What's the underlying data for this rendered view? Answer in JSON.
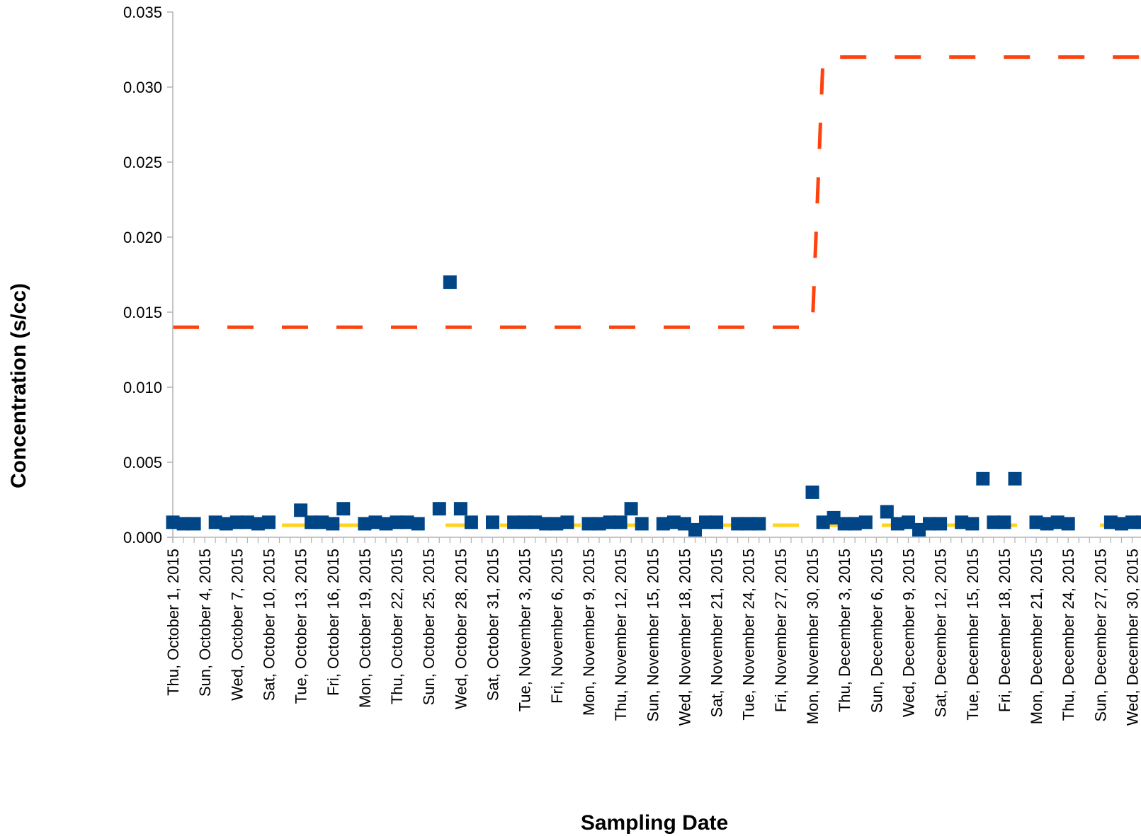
{
  "chart_data": {
    "type": "scatter",
    "xlabel": "Sampling Date",
    "ylabel": "Concentration (s/cc)",
    "ylim": [
      0,
      0.035
    ],
    "xlim": [
      "2015-10-01",
      "2015-12-31"
    ],
    "y_ticks": [
      "0.000",
      "0.005",
      "0.010",
      "0.015",
      "0.020",
      "0.025",
      "0.030",
      "0.035"
    ],
    "x_ticks": [
      {
        "date": "2015-10-01",
        "label": "Thu, October 1, 2015"
      },
      {
        "date": "2015-10-04",
        "label": "Sun, October 4, 2015"
      },
      {
        "date": "2015-10-07",
        "label": "Wed, October 7, 2015"
      },
      {
        "date": "2015-10-10",
        "label": "Sat, October 10, 2015"
      },
      {
        "date": "2015-10-13",
        "label": "Tue, October 13, 2015"
      },
      {
        "date": "2015-10-16",
        "label": "Fri, October 16, 2015"
      },
      {
        "date": "2015-10-19",
        "label": "Mon, October 19, 2015"
      },
      {
        "date": "2015-10-22",
        "label": "Thu, October 22, 2015"
      },
      {
        "date": "2015-10-25",
        "label": "Sun, October 25, 2015"
      },
      {
        "date": "2015-10-28",
        "label": "Wed, October 28, 2015"
      },
      {
        "date": "2015-10-31",
        "label": "Sat, October 31, 2015"
      },
      {
        "date": "2015-11-03",
        "label": "Tue, November 3, 2015"
      },
      {
        "date": "2015-11-06",
        "label": "Fri, November 6, 2015"
      },
      {
        "date": "2015-11-09",
        "label": "Mon, November 9, 2015"
      },
      {
        "date": "2015-11-12",
        "label": "Thu, November 12, 2015"
      },
      {
        "date": "2015-11-15",
        "label": "Sun, November 15, 2015"
      },
      {
        "date": "2015-11-18",
        "label": "Wed, November 18, 2015"
      },
      {
        "date": "2015-11-21",
        "label": "Sat, November 21, 2015"
      },
      {
        "date": "2015-11-24",
        "label": "Tue, November 24, 2015"
      },
      {
        "date": "2015-11-27",
        "label": "Fri, November 27, 2015"
      },
      {
        "date": "2015-11-30",
        "label": "Mon, November 30, 2015"
      },
      {
        "date": "2015-12-03",
        "label": "Thu, December 3, 2015"
      },
      {
        "date": "2015-12-06",
        "label": "Sun, December 6, 2015"
      },
      {
        "date": "2015-12-09",
        "label": "Wed, December 9, 2015"
      },
      {
        "date": "2015-12-12",
        "label": "Sat, December 12, 2015"
      },
      {
        "date": "2015-12-15",
        "label": "Tue, December 15, 2015"
      },
      {
        "date": "2015-12-18",
        "label": "Fri, December 18, 2015"
      },
      {
        "date": "2015-12-21",
        "label": "Mon, December 21, 2015"
      },
      {
        "date": "2015-12-24",
        "label": "Thu, December 24, 2015"
      },
      {
        "date": "2015-12-27",
        "label": "Sun, December 27, 2015"
      },
      {
        "date": "2015-12-30",
        "label": "Wed, December 30, 2015"
      }
    ],
    "grid": false,
    "legend": "none",
    "series": [
      {
        "type": "scatter",
        "color": "#004586",
        "marker": "square",
        "points": [
          {
            "x": "2015-10-01",
            "y": 0.001
          },
          {
            "x": "2015-10-02",
            "y": 0.0009
          },
          {
            "x": "2015-10-03",
            "y": 0.0009
          },
          {
            "x": "2015-10-05",
            "y": 0.001
          },
          {
            "x": "2015-10-06",
            "y": 0.0009
          },
          {
            "x": "2015-10-07",
            "y": 0.001
          },
          {
            "x": "2015-10-08",
            "y": 0.001
          },
          {
            "x": "2015-10-09",
            "y": 0.0009
          },
          {
            "x": "2015-10-10",
            "y": 0.001
          },
          {
            "x": "2015-10-13",
            "y": 0.0018
          },
          {
            "x": "2015-10-14",
            "y": 0.001
          },
          {
            "x": "2015-10-15",
            "y": 0.001
          },
          {
            "x": "2015-10-16",
            "y": 0.0009
          },
          {
            "x": "2015-10-17",
            "y": 0.0019
          },
          {
            "x": "2015-10-19",
            "y": 0.0009
          },
          {
            "x": "2015-10-20",
            "y": 0.001
          },
          {
            "x": "2015-10-21",
            "y": 0.0009
          },
          {
            "x": "2015-10-22",
            "y": 0.001
          },
          {
            "x": "2015-10-23",
            "y": 0.001
          },
          {
            "x": "2015-10-24",
            "y": 0.0009
          },
          {
            "x": "2015-10-26",
            "y": 0.0019
          },
          {
            "x": "2015-10-27",
            "y": 0.017
          },
          {
            "x": "2015-10-28",
            "y": 0.0019
          },
          {
            "x": "2015-10-29",
            "y": 0.001
          },
          {
            "x": "2015-10-31",
            "y": 0.001
          },
          {
            "x": "2015-11-02",
            "y": 0.001
          },
          {
            "x": "2015-11-03",
            "y": 0.001
          },
          {
            "x": "2015-11-04",
            "y": 0.001
          },
          {
            "x": "2015-11-05",
            "y": 0.0009
          },
          {
            "x": "2015-11-06",
            "y": 0.0009
          },
          {
            "x": "2015-11-07",
            "y": 0.001
          },
          {
            "x": "2015-11-09",
            "y": 0.0009
          },
          {
            "x": "2015-11-10",
            "y": 0.0009
          },
          {
            "x": "2015-11-11",
            "y": 0.001
          },
          {
            "x": "2015-11-12",
            "y": 0.001
          },
          {
            "x": "2015-11-13",
            "y": 0.0019
          },
          {
            "x": "2015-11-14",
            "y": 0.0009
          },
          {
            "x": "2015-11-16",
            "y": 0.0009
          },
          {
            "x": "2015-11-17",
            "y": 0.001
          },
          {
            "x": "2015-11-18",
            "y": 0.0009
          },
          {
            "x": "2015-11-19",
            "y": 0.0005
          },
          {
            "x": "2015-11-20",
            "y": 0.001
          },
          {
            "x": "2015-11-21",
            "y": 0.001
          },
          {
            "x": "2015-11-23",
            "y": 0.0009
          },
          {
            "x": "2015-11-24",
            "y": 0.0009
          },
          {
            "x": "2015-11-25",
            "y": 0.0009
          },
          {
            "x": "2015-11-30",
            "y": 0.003
          },
          {
            "x": "2015-12-01",
            "y": 0.001
          },
          {
            "x": "2015-12-02",
            "y": 0.0013
          },
          {
            "x": "2015-12-03",
            "y": 0.0009
          },
          {
            "x": "2015-12-04",
            "y": 0.0009
          },
          {
            "x": "2015-12-05",
            "y": 0.001
          },
          {
            "x": "2015-12-07",
            "y": 0.0017
          },
          {
            "x": "2015-12-08",
            "y": 0.0009
          },
          {
            "x": "2015-12-09",
            "y": 0.001
          },
          {
            "x": "2015-12-10",
            "y": 0.0005
          },
          {
            "x": "2015-12-11",
            "y": 0.0009
          },
          {
            "x": "2015-12-12",
            "y": 0.0009
          },
          {
            "x": "2015-12-14",
            "y": 0.001
          },
          {
            "x": "2015-12-15",
            "y": 0.0009
          },
          {
            "x": "2015-12-16",
            "y": 0.0039
          },
          {
            "x": "2015-12-17",
            "y": 0.001
          },
          {
            "x": "2015-12-18",
            "y": 0.001
          },
          {
            "x": "2015-12-19",
            "y": 0.0039
          },
          {
            "x": "2015-12-21",
            "y": 0.001
          },
          {
            "x": "2015-12-22",
            "y": 0.0009
          },
          {
            "x": "2015-12-23",
            "y": 0.001
          },
          {
            "x": "2015-12-24",
            "y": 0.0009
          },
          {
            "x": "2015-12-28",
            "y": 0.001
          },
          {
            "x": "2015-12-29",
            "y": 0.0009
          },
          {
            "x": "2015-12-30",
            "y": 0.001
          },
          {
            "x": "2015-12-31",
            "y": 0.001
          }
        ]
      },
      {
        "type": "line",
        "style": "dashed",
        "color": "#ff420e",
        "points": [
          {
            "x": "2015-10-01",
            "y": 0.014
          },
          {
            "x": "2015-11-30",
            "y": 0.014
          },
          {
            "x": "2015-12-01",
            "y": 0.032
          },
          {
            "x": "2015-12-31",
            "y": 0.032
          }
        ]
      },
      {
        "type": "line",
        "style": "dashed",
        "color": "#ffd320",
        "points": [
          {
            "x": "2015-10-01",
            "y": 0.0008
          },
          {
            "x": "2015-12-31",
            "y": 0.0008
          }
        ]
      }
    ]
  }
}
